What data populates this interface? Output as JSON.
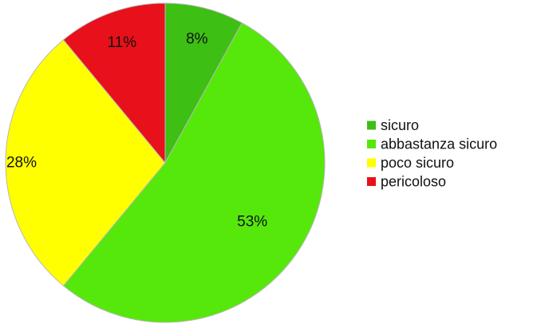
{
  "chart_data": {
    "type": "pie",
    "categories": [
      "sicuro",
      "abbastanza sicuro",
      "poco sicuro",
      "pericoloso"
    ],
    "values": [
      8,
      53,
      28,
      11
    ],
    "labels": [
      "8%",
      "53%",
      "28%",
      "11%"
    ],
    "colors": [
      "#3dbf14",
      "#55e80a",
      "#ffff00",
      "#e8101a"
    ],
    "start": "12 o'clock, clockwise",
    "legend_position": "right",
    "title": ""
  }
}
